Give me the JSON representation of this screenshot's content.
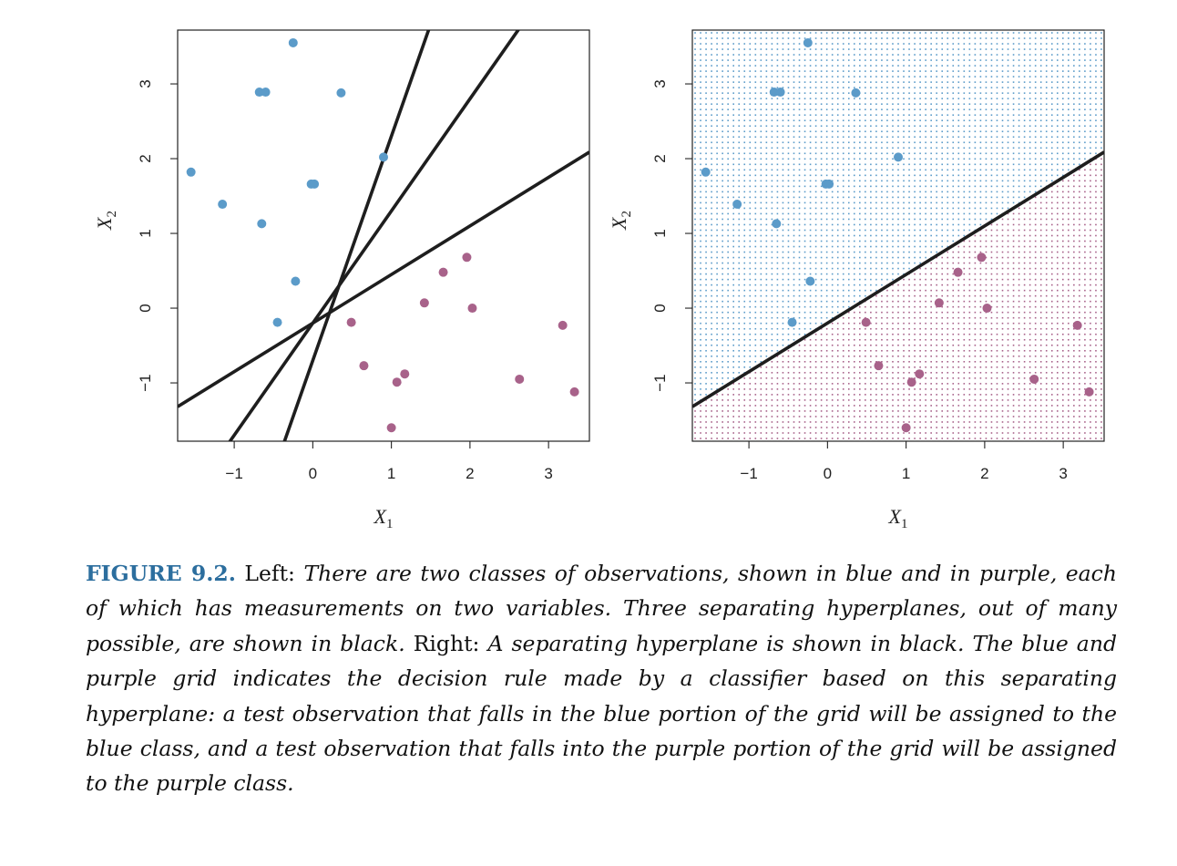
{
  "colors": {
    "blue": "#5b9bc9",
    "purple": "#a8628a",
    "line": "#1e1e1e",
    "figure_label": "#2c6e9e"
  },
  "chart_data": [
    {
      "type": "scatter",
      "panel": "left",
      "xlabel": {
        "main": "X",
        "sub": "1"
      },
      "ylabel": {
        "main": "X",
        "sub": "2"
      },
      "xlim": [
        -1.72,
        3.52
      ],
      "ylim": [
        -1.78,
        3.72
      ],
      "xticks": [
        -1,
        0,
        1,
        2,
        3
      ],
      "yticks": [
        -1,
        0,
        1,
        2,
        3
      ],
      "xtick_labels": [
        "−1",
        "0",
        "1",
        "2",
        "3"
      ],
      "ytick_labels": [
        "−1",
        "0",
        "1",
        "2",
        "3"
      ],
      "grid": false,
      "series": [
        {
          "class": "blue",
          "points": [
            [
              -0.25,
              3.55
            ],
            [
              -0.68,
              2.89
            ],
            [
              -0.6,
              2.89
            ],
            [
              0.36,
              2.88
            ],
            [
              0.9,
              2.02
            ],
            [
              -1.55,
              1.82
            ],
            [
              -0.02,
              1.66
            ],
            [
              0.02,
              1.66
            ],
            [
              -1.15,
              1.39
            ],
            [
              -0.65,
              1.13
            ],
            [
              -0.22,
              0.36
            ],
            [
              -0.45,
              -0.19
            ]
          ]
        },
        {
          "class": "purple",
          "points": [
            [
              1.96,
              0.68
            ],
            [
              1.66,
              0.48
            ],
            [
              1.42,
              0.07
            ],
            [
              2.03,
              0.0
            ],
            [
              0.49,
              -0.19
            ],
            [
              3.18,
              -0.23
            ],
            [
              0.65,
              -0.77
            ],
            [
              1.17,
              -0.88
            ],
            [
              1.07,
              -0.99
            ],
            [
              2.63,
              -0.95
            ],
            [
              3.33,
              -1.12
            ],
            [
              1.0,
              -1.6
            ]
          ]
        }
      ],
      "lines": [
        {
          "intercept": -0.2,
          "slope": 0.65
        },
        {
          "intercept": -0.2,
          "slope": 1.5
        },
        {
          "intercept": -0.7,
          "slope": 3.0
        }
      ]
    },
    {
      "type": "scatter",
      "panel": "right",
      "xlabel": {
        "main": "X",
        "sub": "1"
      },
      "ylabel": {
        "main": "X",
        "sub": "2"
      },
      "xlim": [
        -1.72,
        3.52
      ],
      "ylim": [
        -1.78,
        3.72
      ],
      "xticks": [
        -1,
        0,
        1,
        2,
        3
      ],
      "yticks": [
        -1,
        0,
        1,
        2,
        3
      ],
      "xtick_labels": [
        "−1",
        "0",
        "1",
        "2",
        "3"
      ],
      "ytick_labels": [
        "−1",
        "0",
        "1",
        "2",
        "3"
      ],
      "grid": false,
      "decision_grid": {
        "nx": 75,
        "ny": 75,
        "above": "blue",
        "below": "purple"
      },
      "series": [
        {
          "class": "blue",
          "points": [
            [
              -0.25,
              3.55
            ],
            [
              -0.68,
              2.89
            ],
            [
              -0.6,
              2.89
            ],
            [
              0.36,
              2.88
            ],
            [
              0.9,
              2.02
            ],
            [
              -1.55,
              1.82
            ],
            [
              -0.02,
              1.66
            ],
            [
              0.02,
              1.66
            ],
            [
              -1.15,
              1.39
            ],
            [
              -0.65,
              1.13
            ],
            [
              -0.22,
              0.36
            ],
            [
              -0.45,
              -0.19
            ]
          ]
        },
        {
          "class": "purple",
          "points": [
            [
              1.96,
              0.68
            ],
            [
              1.66,
              0.48
            ],
            [
              1.42,
              0.07
            ],
            [
              2.03,
              0.0
            ],
            [
              0.49,
              -0.19
            ],
            [
              3.18,
              -0.23
            ],
            [
              0.65,
              -0.77
            ],
            [
              1.17,
              -0.88
            ],
            [
              1.07,
              -0.99
            ],
            [
              2.63,
              -0.95
            ],
            [
              3.33,
              -1.12
            ],
            [
              1.0,
              -1.6
            ]
          ]
        }
      ],
      "lines": [
        {
          "intercept": -0.2,
          "slope": 0.65
        }
      ]
    }
  ],
  "caption": {
    "label": "FIGURE 9.2.",
    "left_word": "Left:",
    "left_text": "There are two classes of observations, shown in blue and in purple, each of which has measurements on two variables. Three separating hyperplanes, out of many possible, are shown in black.",
    "right_word": "Right:",
    "right_text": "A separating hyperplane is shown in black. The blue and purple grid indicates the decision rule made by a classifier based on this separating hyperplane: a test observation that falls in the blue portion of the grid will be assigned to the blue class, and a test observation that falls into the purple portion of the grid will be assigned to the purple class."
  }
}
